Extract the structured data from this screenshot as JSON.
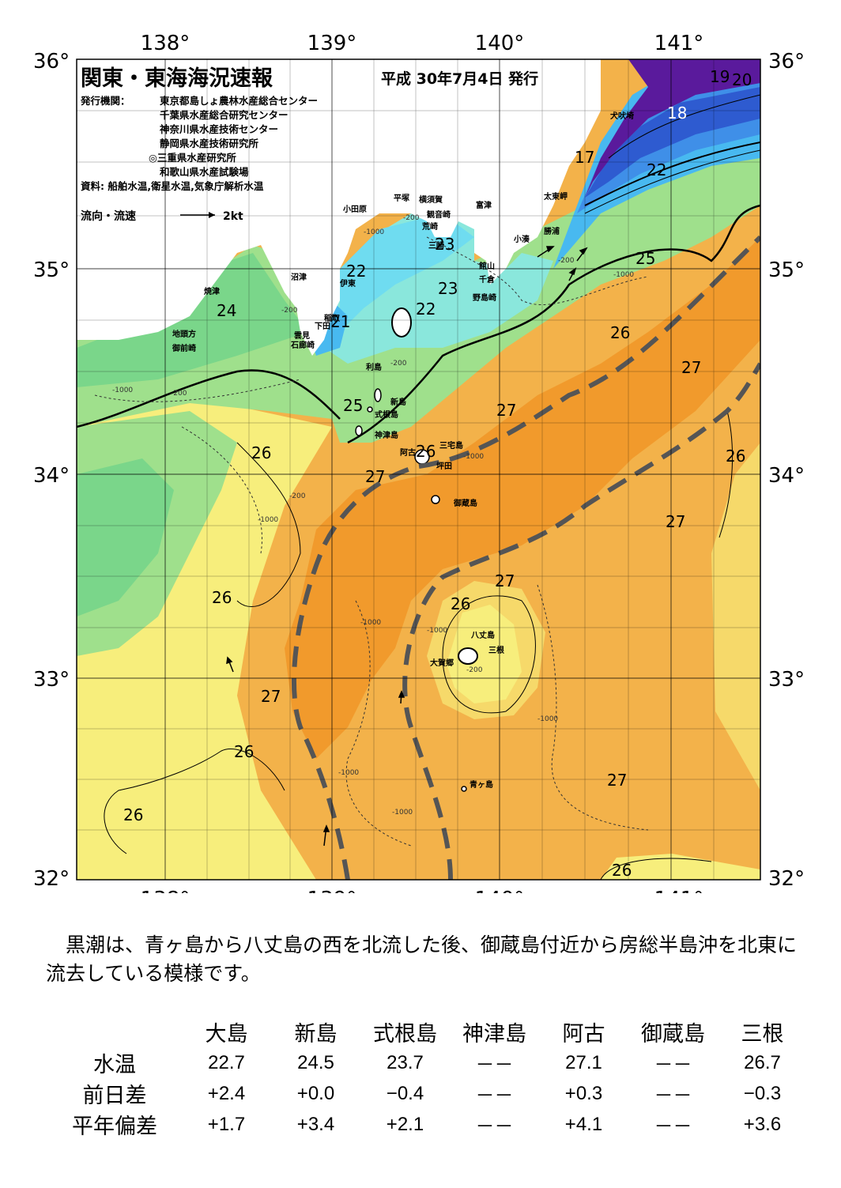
{
  "map": {
    "title": "関東・東海海況速報",
    "issue_date": "平成 30年7月4日 発行",
    "issuers_label": "発行機関：",
    "issuers": [
      "東京都島しょ農林水産総合センター",
      "千葉県水産総合研究センター",
      "神奈川県水産技術センター",
      "静岡県水産技術研究所",
      "◎三重県水産研究所",
      "和歌山県水産試験場"
    ],
    "sources": "資料: 船舶水温,衛星水温,気象庁解析水温",
    "legend_label": "流向・流速",
    "legend_scale": "2kt",
    "lon_labels": [
      "138°",
      "139°",
      "140°",
      "141°"
    ],
    "lat_labels": [
      "36°",
      "35°",
      "34°",
      "33°",
      "32°"
    ],
    "place_names": [
      "犬吠埼",
      "太東岬",
      "勝浦",
      "小湊",
      "富津",
      "観音崎",
      "荒崎",
      "三崎",
      "横須賀",
      "平塚",
      "小田原",
      "館山",
      "千倉",
      "野島崎",
      "沼津",
      "伊東",
      "稲取",
      "下田",
      "石廊崎",
      "雲見",
      "焼津",
      "地頭方",
      "御前崎",
      "利島",
      "新島",
      "式根島",
      "神津島",
      "三宅島",
      "阿古",
      "坪田",
      "御蔵島",
      "八丈島",
      "三根",
      "大賀郷",
      "青ヶ島"
    ],
    "temperature_labels": [
      "19",
      "20",
      "18",
      "17",
      "22",
      "25",
      "23",
      "23",
      "22",
      "22",
      "21",
      "24",
      "26",
      "27",
      "25",
      "26",
      "27",
      "26",
      "27",
      "27",
      "26",
      "27",
      "26",
      "26",
      "27",
      "27",
      "26",
      "26",
      "26"
    ],
    "depth_labels": [
      "-200",
      "-1000"
    ],
    "colors": {
      "t17": "#5a1a9c",
      "t18": "#2e5bd0",
      "t19": "#3f8fe8",
      "t21": "#48b9f0",
      "t22": "#6fdcf0",
      "t23": "#8ae7dc",
      "t24": "#7ad68a",
      "t25": "#9fe08c",
      "t26": "#f7ee7c",
      "t265": "#f6d96a",
      "t27": "#f3b24a",
      "t275": "#f19a2c",
      "kuroshio_axis": "#555555",
      "land": "#ffffff"
    }
  },
  "summary": {
    "text": "黒潮は、青ヶ島から八丈島の西を北流した後、御蔵島付近から房総半島沖を北東に流去している模様です。"
  },
  "observations": {
    "headers": [
      "大島",
      "新島",
      "式根島",
      "神津島",
      "阿古",
      "御蔵島",
      "三根"
    ],
    "rows": [
      {
        "label": "水温",
        "values": [
          "22.7",
          "24.5",
          "23.7",
          "－－",
          "27.1",
          "－－",
          "26.7"
        ]
      },
      {
        "label": "前日差",
        "values": [
          "+2.4",
          "+0.0",
          "−0.4",
          "－－",
          "+0.3",
          "－－",
          "−0.3"
        ]
      },
      {
        "label": "平年偏差",
        "values": [
          "+1.7",
          "+3.4",
          "+2.1",
          "－－",
          "+4.1",
          "－－",
          "+3.6"
        ]
      }
    ]
  }
}
